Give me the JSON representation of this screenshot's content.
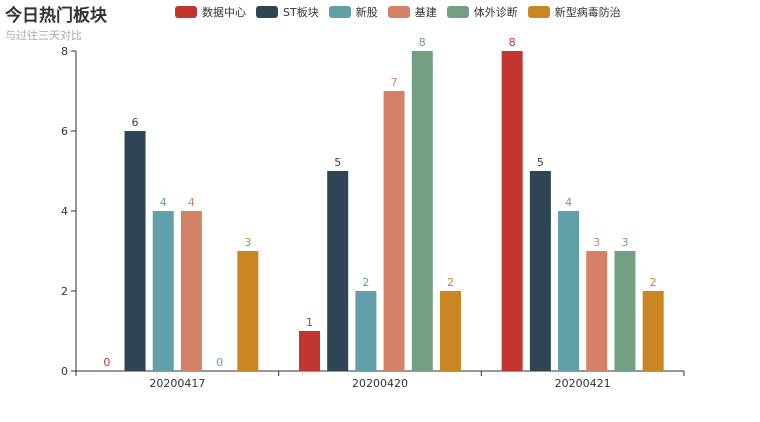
{
  "title": "今日热门板块",
  "subtitle": "与过往三天对比",
  "chart_data": {
    "type": "bar",
    "categories": [
      "20200417",
      "20200420",
      "20200421"
    ],
    "series": [
      {
        "name": "数据中心",
        "color": "#c23531",
        "values": [
          0,
          1,
          8
        ]
      },
      {
        "name": "ST板块",
        "color": "#2f4554",
        "values": [
          6,
          5,
          5
        ]
      },
      {
        "name": "新股",
        "color": "#61a0a8",
        "values": [
          4,
          2,
          4
        ]
      },
      {
        "name": "基建",
        "color": "#d48265",
        "values": [
          4,
          7,
          3
        ]
      },
      {
        "name": "体外诊断",
        "color": "#749f83",
        "values": [
          0,
          8,
          3
        ]
      },
      {
        "name": "新型病毒防治",
        "color": "#ca8622",
        "values": [
          3,
          2,
          2
        ]
      }
    ],
    "ylim": [
      0,
      8
    ],
    "yticks": [
      0,
      2,
      4,
      6,
      8
    ],
    "legend_position": "top"
  }
}
